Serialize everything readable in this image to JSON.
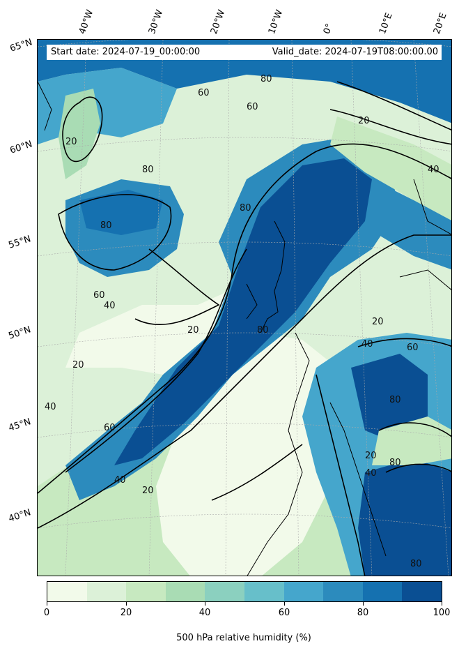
{
  "map": {
    "start_date": "Start date: 2024-07-19_00:00:00",
    "valid_date": "Valid_date: 2024-07-19T08:00:00.00",
    "longitude_labels": [
      "40°W",
      "30°W",
      "20°W",
      "10°W",
      "0°",
      "10°E",
      "20°E"
    ],
    "latitude_labels": [
      "65°N",
      "60°N",
      "55°N",
      "50°N",
      "45°N",
      "40°N"
    ],
    "contour_labels": [
      "20",
      "40",
      "60",
      "80"
    ],
    "colors": {
      "c0": "#f2faea",
      "c10": "#dcf1d8",
      "c20": "#c7e9c0",
      "c30": "#a9dcb4",
      "c40": "#8bd0bf",
      "c50": "#67bfca",
      "c60": "#45a6cc",
      "c70": "#2c8bbd",
      "c80": "#1571b0",
      "c90": "#0a4f93"
    }
  },
  "colorbar": {
    "ticks": [
      "0",
      "20",
      "40",
      "60",
      "80",
      "100"
    ],
    "label": "500 hPa relative humidity (%)"
  }
}
